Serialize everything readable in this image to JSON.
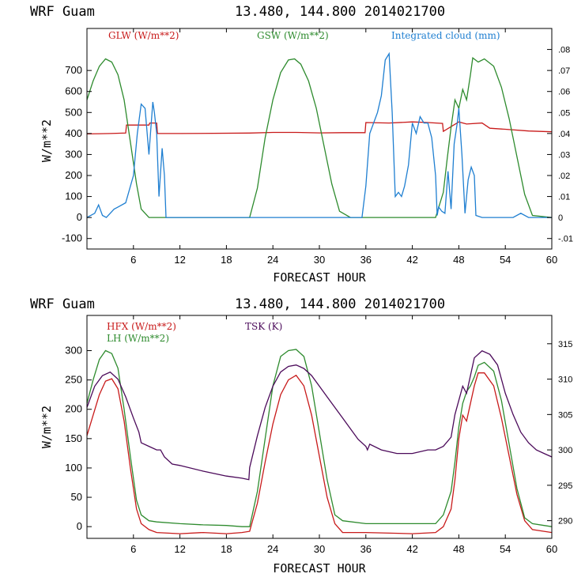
{
  "chart_data": [
    {
      "type": "line",
      "title_left": "WRF  Guam",
      "title_right": "13.480, 144.800  2014021700",
      "xlabel": "FORECAST HOUR",
      "ylabel": "W/m**2",
      "xlim": [
        0,
        60
      ],
      "ylim": [
        -150,
        900
      ],
      "y2lim": [
        -0.015,
        0.09
      ],
      "xticks": [
        6,
        12,
        18,
        24,
        30,
        36,
        42,
        48,
        54,
        60
      ],
      "yticks": [
        -100,
        0,
        100,
        200,
        300,
        400,
        500,
        600,
        700
      ],
      "y2ticks": [
        -0.01,
        0,
        0.01,
        0.02,
        0.03,
        0.04,
        0.05,
        0.06,
        0.07,
        0.08
      ],
      "y2ticklabels": [
        "-.01",
        "0",
        ".01",
        ".02",
        ".03",
        ".04",
        ".05",
        ".06",
        ".07",
        ".08"
      ],
      "series": [
        {
          "name": "GLW (W/m**2)",
          "color": "#c81a1a",
          "axis": "left",
          "x": [
            0,
            3,
            5,
            5.1,
            8,
            8.1,
            9,
            9.1,
            12,
            21,
            24,
            27,
            30,
            33,
            35.9,
            36,
            39,
            42,
            44,
            45.9,
            46,
            48,
            49,
            51,
            52,
            54,
            57,
            60
          ],
          "y": [
            398,
            400,
            402,
            440,
            440,
            450,
            450,
            400,
            400,
            402,
            405,
            405,
            403,
            404,
            404,
            452,
            450,
            455,
            452,
            448,
            410,
            455,
            445,
            450,
            425,
            420,
            412,
            408
          ]
        },
        {
          "name": "GSW (W/m**2)",
          "color": "#2e8b2e",
          "axis": "left",
          "x": [
            0,
            0.8,
            1.6,
            2.4,
            3.2,
            4,
            4.8,
            5.6,
            6.4,
            7,
            8,
            21,
            22,
            23,
            24,
            25,
            26,
            26.8,
            27.6,
            28.6,
            29.6,
            30.6,
            31.6,
            32.6,
            34,
            45,
            46,
            46.5,
            47,
            47.5,
            48,
            48.5,
            49,
            49.5,
            49.8,
            50.5,
            51.3,
            52.5,
            53.5,
            54.5,
            55.5,
            56.5,
            57.5,
            60
          ],
          "y": [
            560,
            650,
            720,
            755,
            740,
            680,
            560,
            360,
            160,
            40,
            0,
            0,
            140,
            380,
            560,
            690,
            750,
            755,
            730,
            650,
            520,
            340,
            160,
            30,
            0,
            0,
            120,
            280,
            430,
            560,
            520,
            610,
            560,
            680,
            760,
            740,
            755,
            720,
            620,
            470,
            290,
            110,
            10,
            0
          ]
        },
        {
          "name": "Integrated cloud (mm)",
          "color": "#1f7fd1",
          "axis": "right",
          "x": [
            0,
            1,
            1.5,
            2,
            2.5,
            3,
            3.5,
            4,
            5,
            6,
            6.5,
            7,
            7.5,
            8,
            8.5,
            8.7,
            9,
            9.3,
            9.7,
            10,
            10.2,
            35.5,
            36,
            36.5,
            37,
            37.5,
            38,
            38.5,
            39,
            39.4,
            39.8,
            40.2,
            40.6,
            41,
            41.5,
            42,
            42.5,
            43,
            43.5,
            44,
            44.5,
            45,
            45.2,
            45.4,
            45.8,
            46.2,
            46.6,
            47,
            47.4,
            47.8,
            48,
            48.4,
            48.8,
            49.2,
            49.6,
            50,
            50.2,
            51,
            55,
            56,
            57,
            60
          ],
          "y": [
            0,
            0.002,
            0.006,
            0.001,
            0,
            0.002,
            0.004,
            0.005,
            0.007,
            0.02,
            0.04,
            0.054,
            0.052,
            0.03,
            0.055,
            0.05,
            0.04,
            0.01,
            0.033,
            0.02,
            0,
            0,
            0.015,
            0.04,
            0.045,
            0.05,
            0.058,
            0.075,
            0.078,
            0.05,
            0.01,
            0.012,
            0.01,
            0.015,
            0.025,
            0.045,
            0.04,
            0.048,
            0.045,
            0.045,
            0.038,
            0.02,
            0.001,
            0.005,
            0.003,
            0.002,
            0.022,
            0.004,
            0.035,
            0.045,
            0.052,
            0.03,
            0.002,
            0.018,
            0.024,
            0.02,
            0.001,
            0,
            0,
            0.002,
            0,
            0
          ]
        }
      ],
      "legend": [
        "GLW (W/m**2)",
        "GSW (W/m**2)",
        "Integrated cloud (mm)"
      ]
    },
    {
      "type": "line",
      "title_left": "WRF  Guam",
      "title_right": "13.480, 144.800  2014021700",
      "xlabel": "FORECAST HOUR",
      "ylabel": "W/m**2",
      "xlim": [
        0,
        60
      ],
      "ylim": [
        -20,
        360
      ],
      "y2lim": [
        287.5,
        319
      ],
      "xticks": [
        6,
        12,
        18,
        24,
        30,
        36,
        42,
        48,
        54,
        60
      ],
      "yticks": [
        0,
        50,
        100,
        150,
        200,
        250,
        300
      ],
      "y2ticks": [
        290,
        295,
        300,
        305,
        310,
        315
      ],
      "y2ticklabels": [
        "290",
        "295",
        "300",
        "305",
        "310",
        "315"
      ],
      "series": [
        {
          "name": "HFX (W/m**2)",
          "color": "#c81a1a",
          "axis": "left",
          "x": [
            0,
            0.8,
            1.6,
            2.4,
            3.2,
            4,
            4.8,
            5.6,
            6.4,
            7,
            8,
            9,
            12,
            15,
            18,
            20,
            21,
            22,
            23,
            24,
            25,
            26,
            27,
            28,
            29,
            30,
            31,
            32,
            33,
            36,
            42,
            45,
            46,
            47,
            47.5,
            48,
            48.5,
            49,
            49.5,
            50,
            50.5,
            51.3,
            52.5,
            53.5,
            54.5,
            55.5,
            56.5,
            57.5,
            59,
            60
          ],
          "y": [
            155,
            190,
            225,
            248,
            252,
            235,
            180,
            100,
            30,
            5,
            -5,
            -10,
            -12,
            -10,
            -12,
            -10,
            -8,
            40,
            110,
            175,
            225,
            250,
            258,
            240,
            190,
            120,
            50,
            5,
            -10,
            -10,
            -12,
            -10,
            0,
            30,
            80,
            150,
            190,
            180,
            210,
            240,
            262,
            262,
            240,
            185,
            120,
            55,
            10,
            -5,
            -8,
            -10
          ]
        },
        {
          "name": "LH (W/m**2)",
          "color": "#2e8b2e",
          "axis": "left",
          "x": [
            0,
            0.8,
            1.6,
            2.4,
            3.2,
            4,
            4.8,
            5.6,
            6.4,
            7,
            8,
            9,
            12,
            15,
            18,
            20,
            21,
            22,
            23,
            24,
            25,
            26,
            27,
            28,
            29,
            30,
            31,
            32,
            33,
            36,
            42,
            45,
            46,
            47,
            47.5,
            48,
            48.5,
            49,
            49.5,
            50,
            50.5,
            51.3,
            52.5,
            53.5,
            54.5,
            55.5,
            56.5,
            57.5,
            59,
            60
          ],
          "y": [
            210,
            250,
            285,
            300,
            295,
            270,
            200,
            120,
            45,
            20,
            10,
            8,
            5,
            3,
            2,
            0,
            0,
            60,
            150,
            240,
            290,
            300,
            302,
            290,
            240,
            160,
            80,
            20,
            10,
            5,
            5,
            5,
            20,
            60,
            110,
            170,
            210,
            230,
            240,
            255,
            275,
            280,
            265,
            215,
            140,
            65,
            15,
            5,
            2,
            0
          ]
        },
        {
          "name": "TSK (K)",
          "color": "#4b0a5a",
          "axis": "right",
          "x": [
            0,
            1,
            2,
            3,
            4,
            5,
            6,
            6.7,
            7,
            8,
            9,
            9.5,
            10,
            11,
            12,
            15,
            18,
            20,
            20.9,
            21,
            22,
            23,
            24,
            25,
            26,
            27,
            28,
            29,
            30,
            31,
            32,
            33,
            34,
            35,
            36,
            36.2,
            36.5,
            38,
            40,
            42,
            44,
            45,
            46,
            47,
            47.5,
            48,
            48.5,
            49,
            49.5,
            50,
            51,
            52,
            53,
            54,
            55,
            56,
            57,
            58,
            59,
            60
          ],
          "y": [
            306,
            309,
            310.5,
            311,
            310,
            307.5,
            304.5,
            302.5,
            301,
            300.5,
            300,
            300,
            299,
            298,
            297.8,
            297,
            296.3,
            296,
            295.8,
            297.5,
            302,
            306,
            309,
            311,
            311.8,
            312,
            311.5,
            310.5,
            309,
            307.5,
            306,
            304.5,
            303,
            301.5,
            300.5,
            300,
            300.8,
            300,
            299.5,
            299.5,
            300,
            300,
            300.5,
            301.8,
            305,
            307,
            309,
            308,
            310.5,
            313,
            314,
            313.5,
            312,
            308,
            305,
            302.5,
            301,
            300,
            299.5,
            299
          ]
        }
      ],
      "legend": [
        "HFX (W/m**2)",
        "LH (W/m**2)",
        "TSK (K)"
      ]
    }
  ]
}
